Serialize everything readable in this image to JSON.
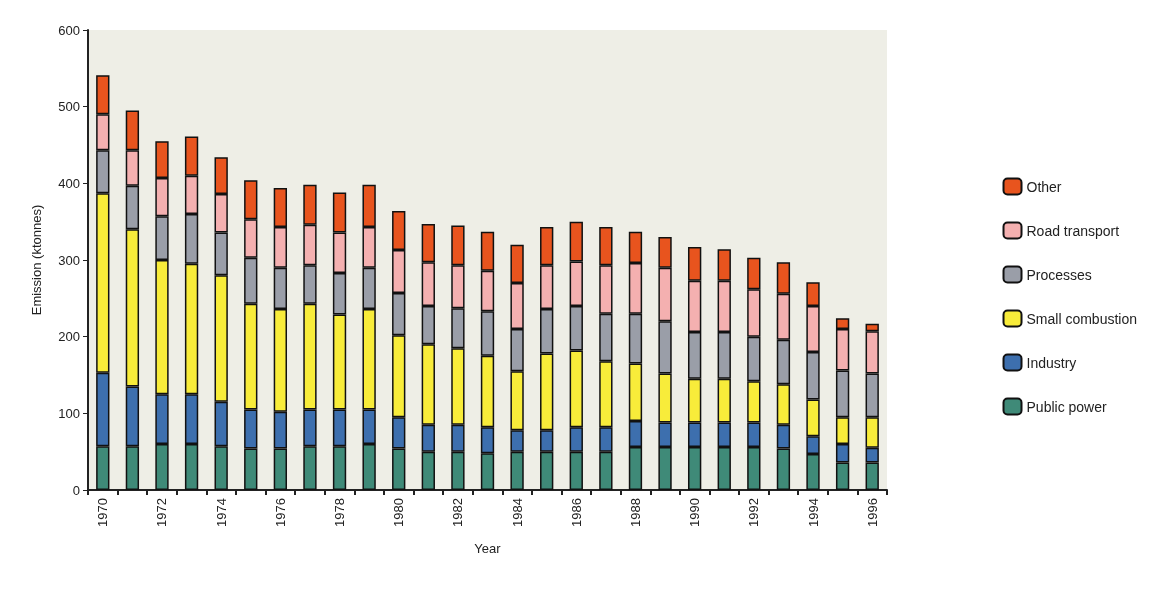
{
  "chart_data": {
    "type": "bar",
    "stacked": true,
    "xlabel": "Year",
    "ylabel": "Emission (ktonnes)",
    "categories": [
      "1970",
      null,
      "1972",
      null,
      "1974",
      null,
      "1976",
      null,
      "1978",
      null,
      "1980",
      null,
      "1982",
      null,
      "1984",
      null,
      "1986",
      null,
      "1988",
      null,
      "1990",
      null,
      "1992",
      null,
      "1994",
      null,
      "1996"
    ],
    "series": [
      {
        "name": "Public power",
        "color": "#3f8a78",
        "values": [
          57,
          57,
          60,
          60,
          57,
          54,
          54,
          57,
          57,
          60,
          54,
          50,
          50,
          48,
          50,
          50,
          50,
          50,
          56,
          56,
          56,
          56,
          56,
          54,
          47,
          36,
          36
        ]
      },
      {
        "name": "Industry",
        "color": "#3d6fae",
        "values": [
          96,
          78,
          65,
          65,
          58,
          51,
          48,
          48,
          48,
          45,
          41,
          35,
          35,
          34,
          28,
          28,
          32,
          32,
          34,
          32,
          32,
          32,
          32,
          31,
          23,
          24,
          19
        ]
      },
      {
        "name": "Small combustion",
        "color": "#f8ec3a",
        "values": [
          234,
          205,
          175,
          170,
          165,
          138,
          134,
          138,
          124,
          131,
          107,
          105,
          100,
          93,
          77,
          100,
          100,
          86,
          75,
          64,
          57,
          57,
          54,
          53,
          48,
          35,
          40
        ]
      },
      {
        "name": "Processes",
        "color": "#9a9ea8",
        "values": [
          56,
          57,
          57,
          65,
          56,
          60,
          54,
          50,
          54,
          54,
          55,
          50,
          52,
          58,
          55,
          58,
          58,
          62,
          65,
          68,
          61,
          61,
          58,
          58,
          62,
          61,
          57
        ]
      },
      {
        "name": "Road transport",
        "color": "#f4b0b0",
        "values": [
          47,
          46,
          50,
          50,
          50,
          50,
          53,
          53,
          53,
          53,
          56,
          57,
          56,
          53,
          60,
          57,
          58,
          63,
          66,
          70,
          67,
          67,
          62,
          60,
          60,
          54,
          55
        ]
      },
      {
        "name": "Other",
        "color": "#e8541e",
        "values": [
          51,
          52,
          48,
          51,
          48,
          51,
          51,
          52,
          52,
          55,
          51,
          50,
          52,
          51,
          50,
          50,
          52,
          50,
          41,
          40,
          44,
          41,
          41,
          41,
          31,
          14,
          10
        ]
      }
    ],
    "ylim": [
      0,
      600
    ],
    "yticks": [
      0,
      100,
      200,
      300,
      400,
      500,
      600
    ],
    "grid": false,
    "legend": "right"
  }
}
